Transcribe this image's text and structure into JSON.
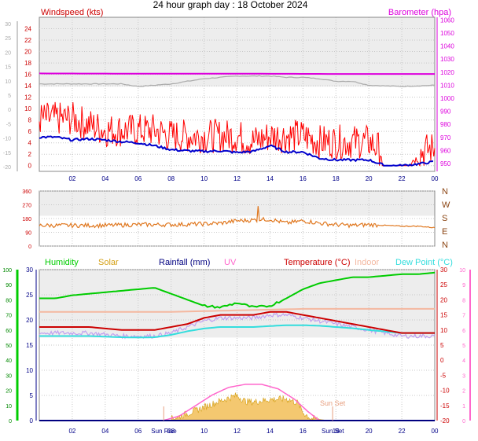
{
  "page_title": "24 hour graph day : 18 October 2024",
  "colors": {
    "windspeed": "#ff0000",
    "windavg": "#0000cc",
    "barometer": "#dd00dd",
    "gust_gray": "#aaaaaa",
    "direction": "#e07820",
    "humidity": "#00cc00",
    "solar": "#d4a017",
    "rainfall": "#000080",
    "uv": "#ff66cc",
    "temperature": "#cc0000",
    "indoor": "#f4b8a0",
    "dewpoint": "#33dddd",
    "windchill": "#c0a0f0",
    "plot_bg": "#e6e6e6",
    "grid": "#c8c8c8"
  },
  "chart_data": [
    {
      "type": "line",
      "id": "wind_baro",
      "x_ticks": [
        "02",
        "04",
        "06",
        "08",
        "10",
        "12",
        "14",
        "16",
        "18",
        "20",
        "22",
        "00"
      ],
      "left_axis": {
        "label": "Windspeed (kts)",
        "ticks": [
          0,
          2,
          4,
          6,
          8,
          10,
          12,
          14,
          16,
          18,
          20,
          22,
          24
        ],
        "ylim": [
          -1,
          26
        ]
      },
      "outer_left_axis": {
        "ticks": [
          -20,
          -15,
          -10,
          -5,
          0,
          5,
          10,
          15,
          20,
          25,
          30
        ]
      },
      "right_axis": {
        "label": "Barometer (hpa)",
        "ticks": [
          950,
          960,
          970,
          980,
          990,
          1000,
          1010,
          1020,
          1030,
          1040,
          1050,
          1060
        ],
        "ylim": [
          944,
          1062
        ]
      },
      "series": [
        {
          "name": "Windspeed",
          "axis": "left",
          "kind": "noisy",
          "x": [
            0,
            1,
            2,
            3,
            4,
            5,
            6,
            7,
            8,
            9,
            10,
            11,
            12,
            13,
            14,
            15,
            16,
            17,
            18,
            19,
            20,
            21,
            22,
            23,
            24
          ],
          "values": [
            7,
            7,
            7,
            6,
            5,
            5,
            5,
            5,
            4,
            4,
            4,
            4,
            4,
            3,
            4,
            4,
            4,
            3,
            3,
            3,
            3,
            1,
            0,
            1,
            2
          ]
        },
        {
          "name": "Average",
          "axis": "left",
          "x": [
            0,
            1,
            2,
            3,
            4,
            5,
            6,
            7,
            8,
            9,
            10,
            11,
            12,
            13,
            14,
            15,
            16,
            17,
            18,
            19,
            20,
            21,
            22,
            23,
            24
          ],
          "values": [
            5,
            5,
            4.5,
            4.7,
            4.5,
            4.2,
            4,
            3.5,
            2.8,
            2.6,
            2.5,
            2.6,
            2.3,
            2.5,
            3.5,
            2.4,
            2.4,
            1.3,
            1,
            1,
            1,
            0,
            0,
            0.3,
            0.7
          ]
        },
        {
          "name": "Barometer",
          "axis": "right",
          "x": [
            0,
            6,
            12,
            18,
            24
          ],
          "values": [
            1019,
            1018.8,
            1018.8,
            1018.6,
            1018.6
          ]
        },
        {
          "name": "Gust",
          "axis": "right",
          "x": [
            0,
            2,
            3,
            5,
            6,
            7,
            8,
            9,
            10,
            11,
            12,
            13,
            14,
            15,
            16,
            17,
            18,
            19,
            20,
            22,
            24
          ],
          "values": [
            1011,
            1011,
            1011,
            1011,
            1009,
            1010,
            1011,
            1013,
            1015,
            1016,
            1017,
            1017,
            1017,
            1016,
            1016,
            1015,
            1013,
            1013,
            1010,
            1009,
            1010
          ]
        }
      ]
    },
    {
      "type": "line",
      "id": "direction",
      "x_ticks": [
        "02",
        "04",
        "06",
        "08",
        "10",
        "12",
        "14",
        "16",
        "18",
        "20",
        "22",
        "00"
      ],
      "left_axis": {
        "ticks": [
          0,
          90,
          180,
          270,
          360
        ],
        "ylim": [
          0,
          360
        ]
      },
      "right_labels": [
        "N",
        "W",
        "S",
        "E",
        "N"
      ],
      "series": [
        {
          "name": "Wind direction",
          "kind": "noisy",
          "x": [
            0,
            2,
            4,
            6,
            8,
            10,
            11,
            12,
            13,
            14,
            15,
            16,
            17,
            18,
            19,
            20,
            21,
            22,
            23,
            24
          ],
          "values": [
            135,
            135,
            135,
            140,
            140,
            145,
            150,
            165,
            170,
            175,
            150,
            165,
            150,
            140,
            135,
            140,
            135,
            130,
            130,
            120
          ]
        }
      ]
    },
    {
      "type": "line",
      "id": "temp_humidity",
      "x_ticks": [
        "02",
        "04",
        "06",
        "08",
        "10",
        "12",
        "14",
        "16",
        "18",
        "20",
        "22",
        "00"
      ],
      "humidity_axis": {
        "ticks": [
          0,
          10,
          20,
          30,
          40,
          50,
          60,
          70,
          80,
          90,
          100
        ],
        "ylim": [
          0,
          100
        ]
      },
      "left_axis": {
        "ticks": [
          0,
          5,
          10,
          15,
          20,
          25,
          30
        ],
        "ylim": [
          0,
          30
        ]
      },
      "right_axis": {
        "ticks": [
          -20,
          -15,
          -10,
          -5,
          0,
          5,
          10,
          15,
          20,
          25,
          30
        ],
        "ylim": [
          -20,
          30
        ]
      },
      "uv_axis": {
        "ticks": [
          0,
          1,
          2,
          3,
          4,
          5,
          6,
          7,
          8,
          9,
          10
        ]
      },
      "annotations": [
        "Sun Rise",
        "Sun Set"
      ],
      "legend": [
        "Humidity",
        "Solar",
        "Rainfall (mm)",
        "UV",
        "Temperature (°C)",
        "Indoor",
        "Dew Point (°C)"
      ],
      "series": [
        {
          "name": "Humidity",
          "axis": "humidity",
          "x": [
            0,
            1,
            2,
            3,
            4,
            5,
            6,
            7,
            8,
            9,
            10,
            11,
            12,
            13,
            14,
            15,
            16,
            17,
            18,
            19,
            20,
            21,
            22,
            23,
            24
          ],
          "values": [
            81,
            81,
            83,
            84,
            85,
            86,
            87,
            88,
            84,
            80,
            76,
            75,
            78,
            75,
            76,
            81,
            87,
            91,
            93,
            95,
            95,
            96,
            97,
            97,
            98
          ]
        },
        {
          "name": "Temperature (°C)",
          "axis": "right",
          "x": [
            0,
            1,
            2,
            3,
            4,
            5,
            6,
            7,
            8,
            9,
            10,
            11,
            12,
            13,
            14,
            15,
            16,
            17,
            18,
            19,
            20,
            21,
            22,
            23,
            24
          ],
          "values": [
            11,
            11,
            11,
            11,
            10.5,
            10,
            10,
            10,
            11,
            12,
            14,
            15,
            15,
            15,
            16,
            16,
            15,
            14,
            13,
            12,
            11,
            10,
            9,
            9,
            9
          ]
        },
        {
          "name": "Dew Point (°C)",
          "axis": "right",
          "x": [
            0,
            1,
            2,
            3,
            4,
            5,
            6,
            7,
            8,
            9,
            10,
            11,
            12,
            13,
            14,
            15,
            16,
            17,
            18,
            19,
            20,
            21,
            22,
            23,
            24
          ],
          "values": [
            8,
            8,
            8,
            8,
            7.8,
            7.6,
            7.5,
            7.6,
            8.4,
            9.6,
            10.5,
            11,
            11,
            11,
            11.3,
            11.6,
            11.6,
            11.4,
            11,
            10.6,
            10,
            9.5,
            9,
            9,
            9
          ]
        },
        {
          "name": "Indoor",
          "axis": "right",
          "x": [
            0,
            4,
            8,
            12,
            16,
            20,
            24
          ],
          "values": [
            16,
            16,
            16,
            16.5,
            17,
            17,
            17
          ]
        },
        {
          "name": "Wind chill",
          "axis": "right",
          "kind": "noisy",
          "x": [
            0,
            1,
            2,
            3,
            4,
            5,
            6,
            7,
            8,
            9,
            10,
            11,
            12,
            13,
            14,
            15,
            16,
            17,
            18,
            19,
            20,
            21,
            22,
            23,
            24
          ],
          "values": [
            9,
            9,
            9,
            9,
            8.5,
            8,
            8,
            8,
            9,
            11,
            13,
            14,
            14,
            14,
            15,
            15,
            14,
            13,
            12,
            11,
            10,
            9,
            8,
            8,
            8
          ]
        },
        {
          "name": "Solar",
          "axis": "left",
          "kind": "area",
          "x": [
            0,
            7.5,
            8.5,
            9.5,
            10.5,
            11.5,
            12,
            12.5,
            13,
            14,
            15,
            15.7,
            16,
            16.5,
            17.6,
            24
          ],
          "values": [
            0,
            0,
            0.8,
            2,
            3.3,
            4.5,
            5,
            3.8,
            3.7,
            4.2,
            4.3,
            3.5,
            1.6,
            0.4,
            0,
            0
          ]
        },
        {
          "name": "UV",
          "axis": "uv",
          "x": [
            0,
            7.5,
            8.5,
            9.5,
            10.5,
            11.5,
            12.5,
            13.5,
            14.5,
            15.5,
            16.3,
            17,
            24
          ],
          "values": [
            0,
            0,
            0.3,
            1,
            1.7,
            2.2,
            2.4,
            2.4,
            2.1,
            1.4,
            0.6,
            0,
            0
          ]
        },
        {
          "name": "Rainfall (mm)",
          "axis": "left",
          "x": [
            0,
            24
          ],
          "values": [
            0,
            0
          ]
        }
      ]
    }
  ]
}
